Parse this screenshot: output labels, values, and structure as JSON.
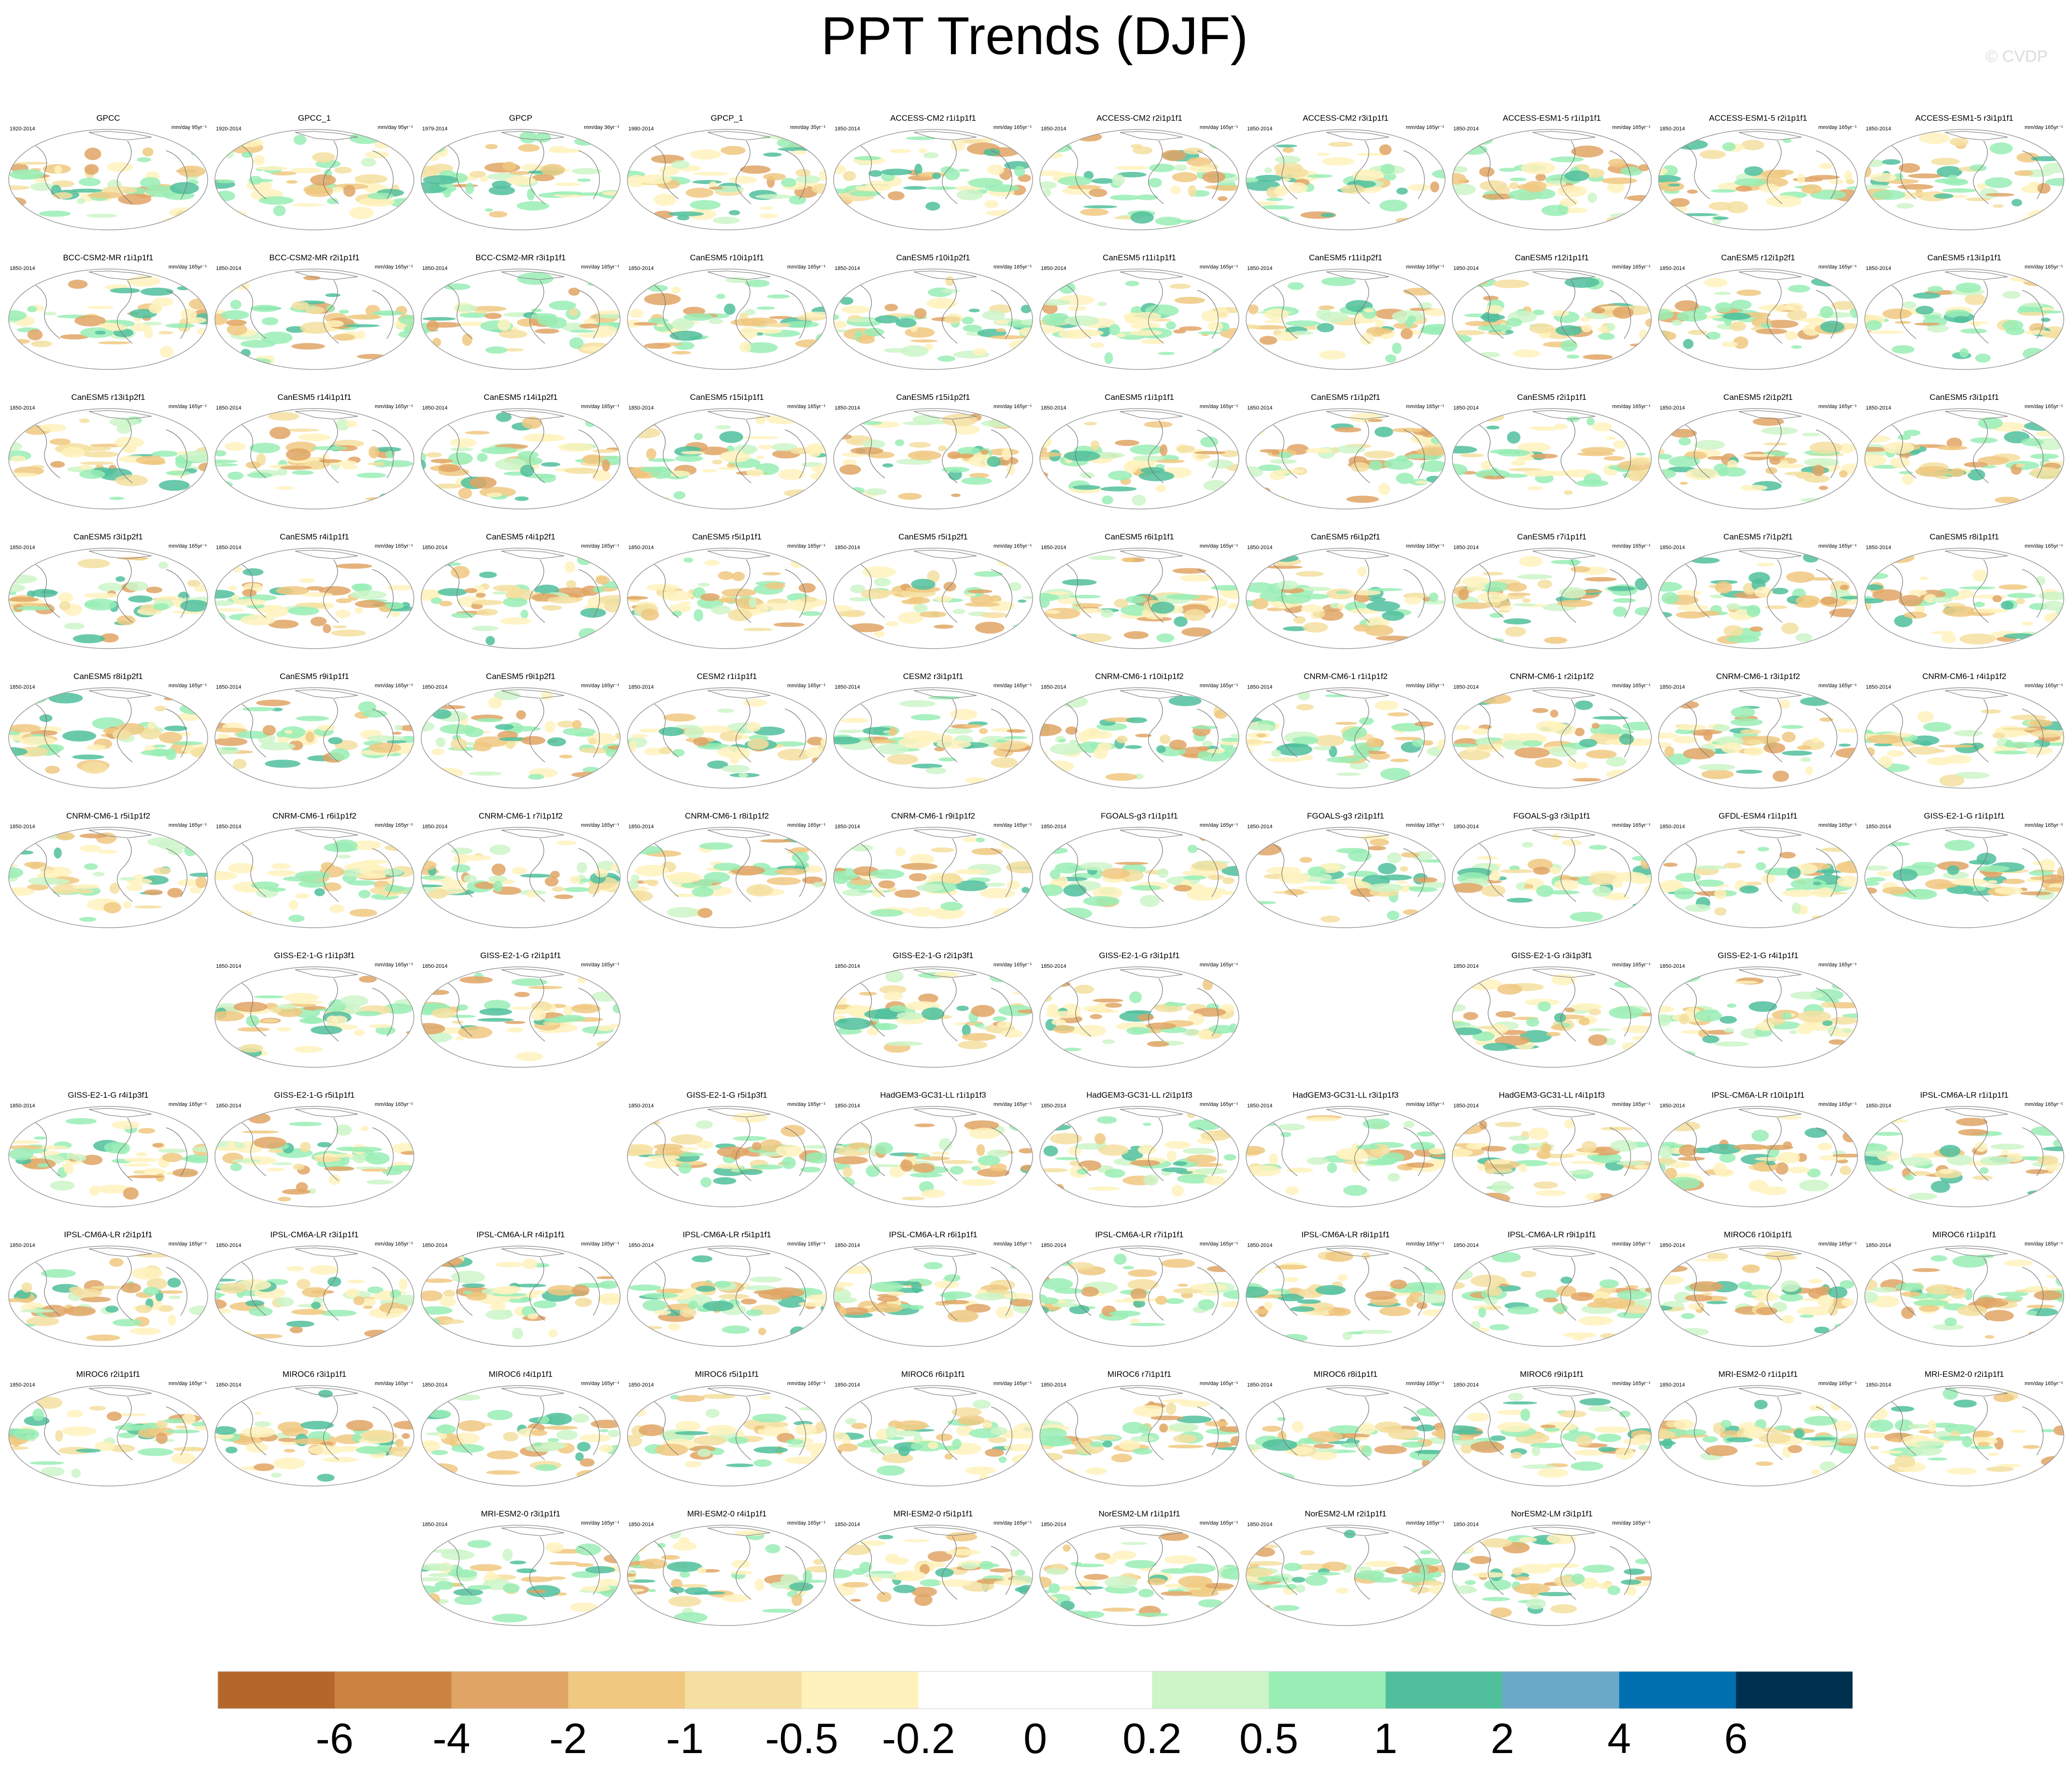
{
  "title": "PPT Trends (DJF)",
  "credit": "© CVDP",
  "panels": [
    [
      {
        "title": "GPCC",
        "period": "1920-2014",
        "units": "mm/day 95yr⁻¹"
      },
      {
        "title": "GPCC_1",
        "period": "1920-2014",
        "units": "mm/day 95yr⁻¹"
      },
      {
        "title": "GPCP",
        "period": "1979-2014",
        "units": "mm/day 36yr⁻¹"
      },
      {
        "title": "GPCP_1",
        "period": "1980-2014",
        "units": "mm/day 35yr⁻¹"
      },
      {
        "title": "ACCESS-CM2 r1i1p1f1",
        "period": "1850-2014",
        "units": "mm/day 165yr⁻¹"
      },
      {
        "title": "ACCESS-CM2 r2i1p1f1",
        "period": "1850-2014",
        "units": "mm/day 165yr⁻¹"
      },
      {
        "title": "ACCESS-CM2 r3i1p1f1",
        "period": "1850-2014",
        "units": "mm/day 165yr⁻¹"
      },
      {
        "title": "ACCESS-ESM1-5 r1i1p1f1",
        "period": "1850-2014",
        "units": "mm/day 165yr⁻¹"
      },
      {
        "title": "ACCESS-ESM1-5 r2i1p1f1",
        "period": "1850-2014",
        "units": "mm/day 165yr⁻¹"
      },
      {
        "title": "ACCESS-ESM1-5 r3i1p1f1",
        "period": "1850-2014",
        "units": "mm/day 165yr⁻¹"
      }
    ],
    [
      {
        "title": "BCC-CSM2-MR r1i1p1f1",
        "period": "1850-2014",
        "units": "mm/day 165yr⁻¹"
      },
      {
        "title": "BCC-CSM2-MR r2i1p1f1",
        "period": "1850-2014",
        "units": "mm/day 165yr⁻¹"
      },
      {
        "title": "BCC-CSM2-MR r3i1p1f1",
        "period": "1850-2014",
        "units": "mm/day 165yr⁻¹"
      },
      {
        "title": "CanESM5 r10i1p1f1",
        "period": "1850-2014",
        "units": "mm/day 165yr⁻¹"
      },
      {
        "title": "CanESM5 r10i1p2f1",
        "period": "1850-2014",
        "units": "mm/day 165yr⁻¹"
      },
      {
        "title": "CanESM5 r11i1p1f1",
        "period": "1850-2014",
        "units": "mm/day 165yr⁻¹"
      },
      {
        "title": "CanESM5 r11i1p2f1",
        "period": "1850-2014",
        "units": "mm/day 165yr⁻¹"
      },
      {
        "title": "CanESM5 r12i1p1f1",
        "period": "1850-2014",
        "units": "mm/day 165yr⁻¹"
      },
      {
        "title": "CanESM5 r12i1p2f1",
        "period": "1850-2014",
        "units": "mm/day 165yr⁻¹"
      },
      {
        "title": "CanESM5 r13i1p1f1",
        "period": "1850-2014",
        "units": "mm/day 165yr⁻¹"
      }
    ],
    [
      {
        "title": "CanESM5 r13i1p2f1",
        "period": "1850-2014",
        "units": "mm/day 165yr⁻¹"
      },
      {
        "title": "CanESM5 r14i1p1f1",
        "period": "1850-2014",
        "units": "mm/day 165yr⁻¹"
      },
      {
        "title": "CanESM5 r14i1p2f1",
        "period": "1850-2014",
        "units": "mm/day 165yr⁻¹"
      },
      {
        "title": "CanESM5 r15i1p1f1",
        "period": "1850-2014",
        "units": "mm/day 165yr⁻¹"
      },
      {
        "title": "CanESM5 r15i1p2f1",
        "period": "1850-2014",
        "units": "mm/day 165yr⁻¹"
      },
      {
        "title": "CanESM5 r1i1p1f1",
        "period": "1850-2014",
        "units": "mm/day 165yr⁻¹"
      },
      {
        "title": "CanESM5 r1i1p2f1",
        "period": "1850-2014",
        "units": "mm/day 165yr⁻¹"
      },
      {
        "title": "CanESM5 r2i1p1f1",
        "period": "1850-2014",
        "units": "mm/day 165yr⁻¹"
      },
      {
        "title": "CanESM5 r2i1p2f1",
        "period": "1850-2014",
        "units": "mm/day 165yr⁻¹"
      },
      {
        "title": "CanESM5 r3i1p1f1",
        "period": "1850-2014",
        "units": "mm/day 165yr⁻¹"
      }
    ],
    [
      {
        "title": "CanESM5 r3i1p2f1",
        "period": "1850-2014",
        "units": "mm/day 165yr⁻¹"
      },
      {
        "title": "CanESM5 r4i1p1f1",
        "period": "1850-2014",
        "units": "mm/day 165yr⁻¹"
      },
      {
        "title": "CanESM5 r4i1p2f1",
        "period": "1850-2014",
        "units": "mm/day 165yr⁻¹"
      },
      {
        "title": "CanESM5 r5i1p1f1",
        "period": "1850-2014",
        "units": "mm/day 165yr⁻¹"
      },
      {
        "title": "CanESM5 r5i1p2f1",
        "period": "1850-2014",
        "units": "mm/day 165yr⁻¹"
      },
      {
        "title": "CanESM5 r6i1p1f1",
        "period": "1850-2014",
        "units": "mm/day 165yr⁻¹"
      },
      {
        "title": "CanESM5 r6i1p2f1",
        "period": "1850-2014",
        "units": "mm/day 165yr⁻¹"
      },
      {
        "title": "CanESM5 r7i1p1f1",
        "period": "1850-2014",
        "units": "mm/day 165yr⁻¹"
      },
      {
        "title": "CanESM5 r7i1p2f1",
        "period": "1850-2014",
        "units": "mm/day 165yr⁻¹"
      },
      {
        "title": "CanESM5 r8i1p1f1",
        "period": "1850-2014",
        "units": "mm/day 165yr⁻¹"
      }
    ],
    [
      {
        "title": "CanESM5 r8i1p2f1",
        "period": "1850-2014",
        "units": "mm/day 165yr⁻¹"
      },
      {
        "title": "CanESM5 r9i1p1f1",
        "period": "1850-2014",
        "units": "mm/day 165yr⁻¹"
      },
      {
        "title": "CanESM5 r9i1p2f1",
        "period": "1850-2014",
        "units": "mm/day 165yr⁻¹"
      },
      {
        "title": "CESM2 r1i1p1f1",
        "period": "1850-2014",
        "units": "mm/day 165yr⁻¹"
      },
      {
        "title": "CESM2 r3i1p1f1",
        "period": "1850-2014",
        "units": "mm/day 165yr⁻¹"
      },
      {
        "title": "CNRM-CM6-1 r10i1p1f2",
        "period": "1850-2014",
        "units": "mm/day 165yr⁻¹"
      },
      {
        "title": "CNRM-CM6-1 r1i1p1f2",
        "period": "1850-2014",
        "units": "mm/day 165yr⁻¹"
      },
      {
        "title": "CNRM-CM6-1 r2i1p1f2",
        "period": "1850-2014",
        "units": "mm/day 165yr⁻¹"
      },
      {
        "title": "CNRM-CM6-1 r3i1p1f2",
        "period": "1850-2014",
        "units": "mm/day 165yr⁻¹"
      },
      {
        "title": "CNRM-CM6-1 r4i1p1f2",
        "period": "1850-2014",
        "units": "mm/day 165yr⁻¹"
      }
    ],
    [
      {
        "title": "CNRM-CM6-1 r5i1p1f2",
        "period": "1850-2014",
        "units": "mm/day 165yr⁻¹"
      },
      {
        "title": "CNRM-CM6-1 r6i1p1f2",
        "period": "1850-2014",
        "units": "mm/day 165yr⁻¹"
      },
      {
        "title": "CNRM-CM6-1 r7i1p1f2",
        "period": "1850-2014",
        "units": "mm/day 165yr⁻¹"
      },
      {
        "title": "CNRM-CM6-1 r8i1p1f2",
        "period": "1850-2014",
        "units": "mm/day 165yr⁻¹"
      },
      {
        "title": "CNRM-CM6-1 r9i1p1f2",
        "period": "1850-2014",
        "units": "mm/day 165yr⁻¹"
      },
      {
        "title": "FGOALS-g3 r1i1p1f1",
        "period": "1850-2014",
        "units": "mm/day 165yr⁻¹"
      },
      {
        "title": "FGOALS-g3 r2i1p1f1",
        "period": "1850-2014",
        "units": "mm/day 165yr⁻¹"
      },
      {
        "title": "FGOALS-g3 r3i1p1f1",
        "period": "1850-2014",
        "units": "mm/day 165yr⁻¹"
      },
      {
        "title": "GFDL-ESM4 r1i1p1f1",
        "period": "1850-2014",
        "units": "mm/day 165yr⁻¹"
      },
      {
        "title": "GISS-E2-1-G r1i1p1f1",
        "period": "1850-2014",
        "units": "mm/day 165yr⁻¹"
      }
    ],
    [
      null,
      {
        "title": "GISS-E2-1-G r1i1p3f1",
        "period": "1850-2014",
        "units": "mm/day 165yr⁻¹"
      },
      {
        "title": "GISS-E2-1-G r2i1p1f1",
        "period": "1850-2014",
        "units": "mm/day 165yr⁻¹"
      },
      null,
      {
        "title": "GISS-E2-1-G r2i1p3f1",
        "period": "1850-2014",
        "units": "mm/day 165yr⁻¹"
      },
      {
        "title": "GISS-E2-1-G r3i1p1f1",
        "period": "1850-2014",
        "units": "mm/day 165yr⁻¹"
      },
      null,
      {
        "title": "GISS-E2-1-G r3i1p3f1",
        "period": "1850-2014",
        "units": "mm/day 165yr⁻¹"
      },
      {
        "title": "GISS-E2-1-G r4i1p1f1",
        "period": "1850-2014",
        "units": "mm/day 165yr⁻¹"
      },
      null
    ],
    [
      {
        "title": "GISS-E2-1-G r4i1p3f1",
        "period": "1850-2014",
        "units": "mm/day 165yr⁻¹"
      },
      {
        "title": "GISS-E2-1-G r5i1p1f1",
        "period": "1850-2014",
        "units": "mm/day 165yr⁻¹"
      },
      null,
      {
        "title": "GISS-E2-1-G r5i1p3f1",
        "period": "1850-2014",
        "units": "mm/day 165yr⁻¹"
      },
      {
        "title": "HadGEM3-GC31-LL r1i1p1f3",
        "period": "1850-2014",
        "units": "mm/day 165yr⁻¹"
      },
      {
        "title": "HadGEM3-GC31-LL r2i1p1f3",
        "period": "1850-2014",
        "units": "mm/day 165yr⁻¹"
      },
      {
        "title": "HadGEM3-GC31-LL r3i1p1f3",
        "period": "1850-2014",
        "units": "mm/day 165yr⁻¹"
      },
      {
        "title": "HadGEM3-GC31-LL r4i1p1f3",
        "period": "1850-2014",
        "units": "mm/day 165yr⁻¹"
      },
      {
        "title": "IPSL-CM6A-LR r10i1p1f1",
        "period": "1850-2014",
        "units": "mm/day 165yr⁻¹"
      },
      {
        "title": "IPSL-CM6A-LR r1i1p1f1",
        "period": "1850-2014",
        "units": "mm/day 165yr⁻¹"
      }
    ],
    [
      {
        "title": "IPSL-CM6A-LR r2i1p1f1",
        "period": "1850-2014",
        "units": "mm/day 165yr⁻¹"
      },
      {
        "title": "IPSL-CM6A-LR r3i1p1f1",
        "period": "1850-2014",
        "units": "mm/day 165yr⁻¹"
      },
      {
        "title": "IPSL-CM6A-LR r4i1p1f1",
        "period": "1850-2014",
        "units": "mm/day 165yr⁻¹"
      },
      {
        "title": "IPSL-CM6A-LR r5i1p1f1",
        "period": "1850-2014",
        "units": "mm/day 165yr⁻¹"
      },
      {
        "title": "IPSL-CM6A-LR r6i1p1f1",
        "period": "1850-2014",
        "units": "mm/day 165yr⁻¹"
      },
      {
        "title": "IPSL-CM6A-LR r7i1p1f1",
        "period": "1850-2014",
        "units": "mm/day 165yr⁻¹"
      },
      {
        "title": "IPSL-CM6A-LR r8i1p1f1",
        "period": "1850-2014",
        "units": "mm/day 165yr⁻¹"
      },
      {
        "title": "IPSL-CM6A-LR r9i1p1f1",
        "period": "1850-2014",
        "units": "mm/day 165yr⁻¹"
      },
      {
        "title": "MIROC6 r10i1p1f1",
        "period": "1850-2014",
        "units": "mm/day 165yr⁻¹"
      },
      {
        "title": "MIROC6 r1i1p1f1",
        "period": "1850-2014",
        "units": "mm/day 165yr⁻¹"
      }
    ],
    [
      {
        "title": "MIROC6 r2i1p1f1",
        "period": "1850-2014",
        "units": "mm/day 165yr⁻¹"
      },
      {
        "title": "MIROC6 r3i1p1f1",
        "period": "1850-2014",
        "units": "mm/day 165yr⁻¹"
      },
      {
        "title": "MIROC6 r4i1p1f1",
        "period": "1850-2014",
        "units": "mm/day 165yr⁻¹"
      },
      {
        "title": "MIROC6 r5i1p1f1",
        "period": "1850-2014",
        "units": "mm/day 165yr⁻¹"
      },
      {
        "title": "MIROC6 r6i1p1f1",
        "period": "1850-2014",
        "units": "mm/day 165yr⁻¹"
      },
      {
        "title": "MIROC6 r7i1p1f1",
        "period": "1850-2014",
        "units": "mm/day 165yr⁻¹"
      },
      {
        "title": "MIROC6 r8i1p1f1",
        "period": "1850-2014",
        "units": "mm/day 165yr⁻¹"
      },
      {
        "title": "MIROC6 r9i1p1f1",
        "period": "1850-2014",
        "units": "mm/day 165yr⁻¹"
      },
      {
        "title": "MRI-ESM2-0 r1i1p1f1",
        "period": "1850-2014",
        "units": "mm/day 165yr⁻¹"
      },
      {
        "title": "MRI-ESM2-0 r2i1p1f1",
        "period": "1850-2014",
        "units": "mm/day 165yr⁻¹"
      }
    ],
    [
      null,
      null,
      {
        "title": "MRI-ESM2-0 r3i1p1f1",
        "period": "1850-2014",
        "units": "mm/day 165yr⁻¹"
      },
      {
        "title": "MRI-ESM2-0 r4i1p1f1",
        "period": "1850-2014",
        "units": "mm/day 165yr⁻¹"
      },
      {
        "title": "MRI-ESM2-0 r5i1p1f1",
        "period": "1850-2014",
        "units": "mm/day 165yr⁻¹"
      },
      {
        "title": "NorESM2-LM r1i1p1f1",
        "period": "1850-2014",
        "units": "mm/day 165yr⁻¹"
      },
      {
        "title": "NorESM2-LM r2i1p1f1",
        "period": "1850-2014",
        "units": "mm/day 165yr⁻¹"
      },
      {
        "title": "NorESM2-LM r3i1p1f1",
        "period": "1850-2014",
        "units": "mm/day 165yr⁻¹"
      },
      null,
      null
    ]
  ],
  "colorbar": {
    "colors": [
      "#b5672a",
      "#cc8240",
      "#e0a465",
      "#f0c880",
      "#f5dfa0",
      "#fff2bd",
      "#ffffff",
      "#ffffff",
      "#ccf5c8",
      "#99edb5",
      "#50bf9c",
      "#6aa9c8",
      "#0070b0",
      "#003050"
    ],
    "labels": [
      -6,
      -4,
      -2,
      -1,
      -0.5,
      -0.2,
      0,
      0.2,
      0.5,
      1,
      2,
      4,
      6
    ]
  }
}
